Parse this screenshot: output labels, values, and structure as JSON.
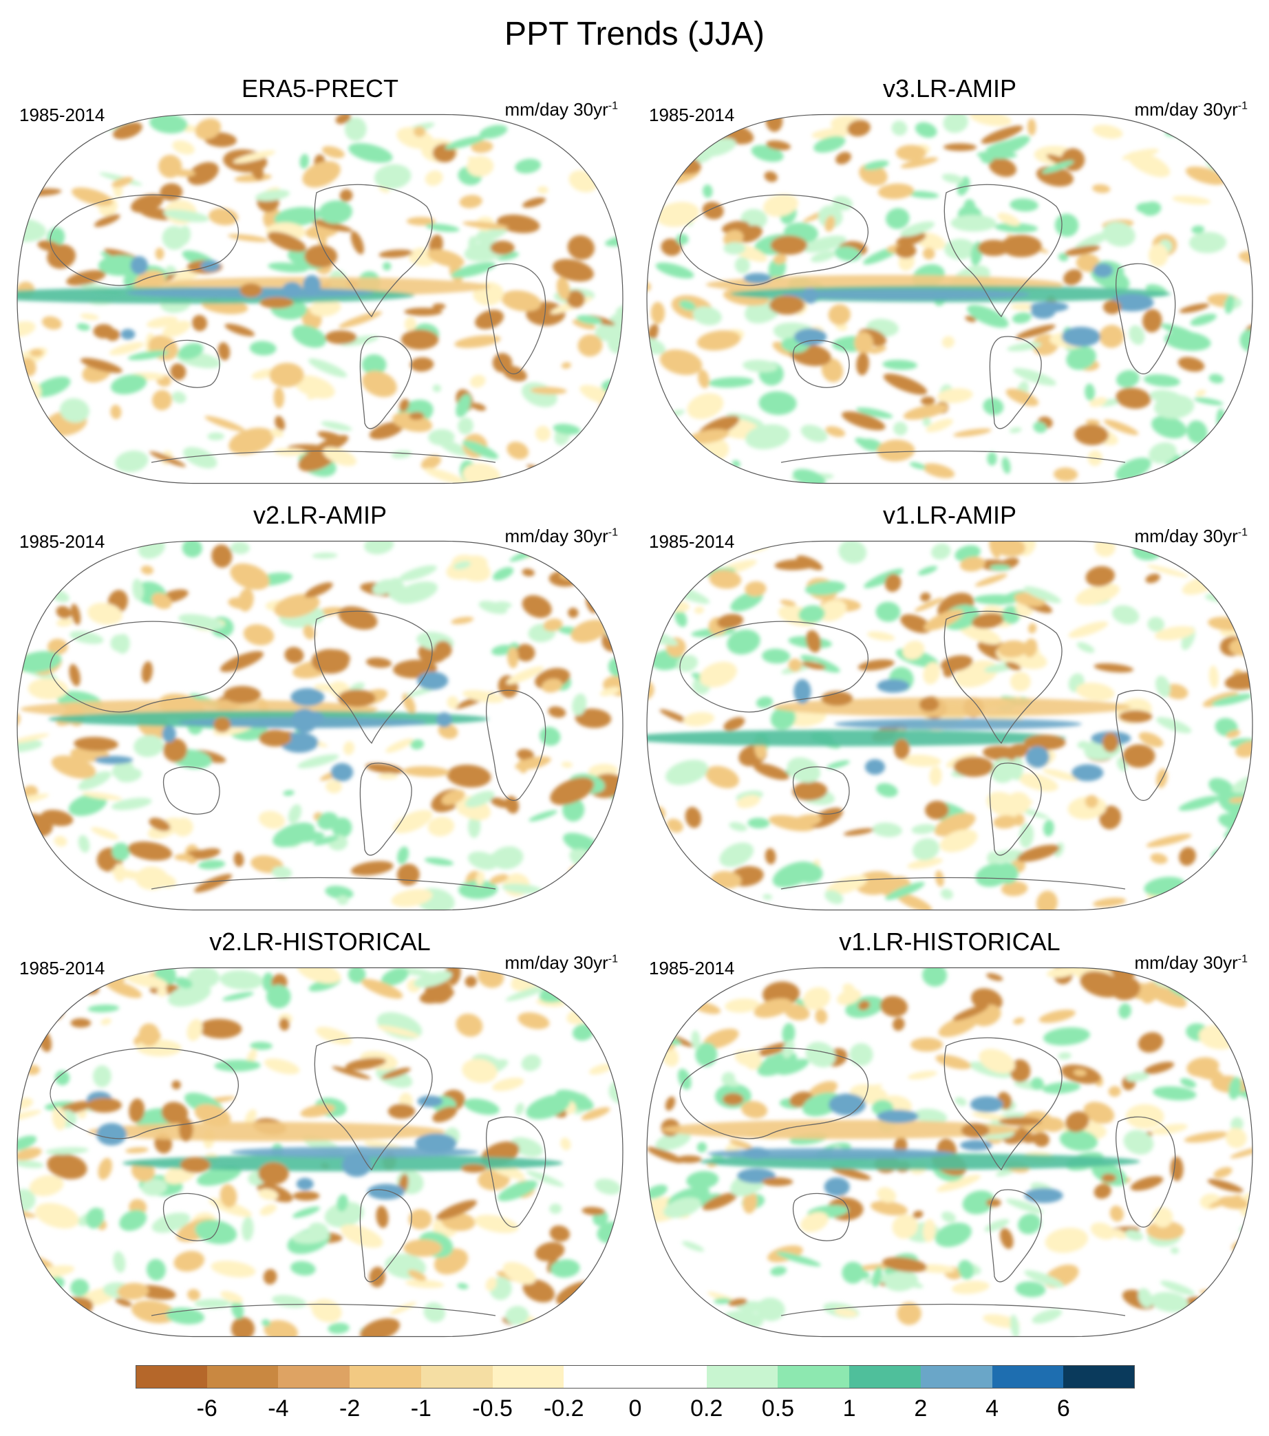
{
  "figure": {
    "title": "PPT Trends (JJA)",
    "period": "1985-2014",
    "units_main": "mm/day 30yr",
    "units_sup": "-1"
  },
  "panels": [
    {
      "id": "era5",
      "title": "ERA5-PRECT"
    },
    {
      "id": "v3amip",
      "title": "v3.LR-AMIP"
    },
    {
      "id": "v2amip",
      "title": "v2.LR-AMIP"
    },
    {
      "id": "v1amip",
      "title": "v1.LR-AMIP"
    },
    {
      "id": "v2hist",
      "title": "v2.LR-HISTORICAL"
    },
    {
      "id": "v1hist",
      "title": "v1.LR-HISTORICAL"
    }
  ],
  "colorbar": {
    "colors": [
      "#b5672a",
      "#c98841",
      "#dea363",
      "#f2c982",
      "#f5dea3",
      "#fff2c2",
      "#ffffff",
      "#ffffff",
      "#c8f5d0",
      "#8de8b0",
      "#4fbf9b",
      "#6aa6c8",
      "#1e6eb0",
      "#0a3a5c"
    ],
    "labels": [
      "-6",
      "-4",
      "-2",
      "-1",
      "-0.5",
      "-0.2",
      "0",
      "0.2",
      "0.5",
      "1",
      "2",
      "4",
      "6"
    ]
  },
  "map_colors": {
    "dry_strong": "#c98841",
    "dry": "#f2c982",
    "dry_weak": "#fff2c2",
    "wet_weak": "#c8f5d0",
    "wet": "#8de8b0",
    "wet_mid": "#4fbf9b",
    "wet_strong": "#6aa6c8",
    "wet_max": "#1e6eb0",
    "coast": "#666666"
  }
}
